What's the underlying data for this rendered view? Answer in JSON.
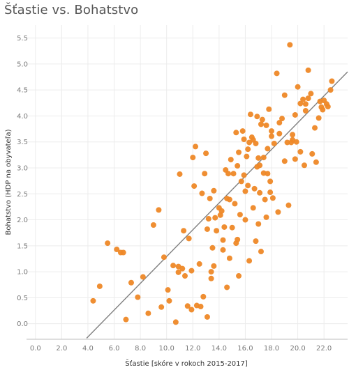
{
  "title": "Šťastie vs. Bohatstvo",
  "colors": {
    "point": "#EE8827",
    "trend": "#7f7f7f",
    "grid": "#ececec",
    "axis": "#bdbdbd"
  },
  "chart_data": {
    "type": "scatter",
    "title": "Šťastie vs. Bohatstvo",
    "xlabel": "Šťastie  [skóre v rokoch 2015-2017]",
    "ylabel": "Bohatstvo (HDP na obyvateľa)",
    "xlim": [
      -1,
      23.8
    ],
    "ylim": [
      -0.3,
      5.75
    ],
    "xticks": [
      "0.0",
      "2.0",
      "4.0",
      "6.0",
      "8.0",
      "10.0",
      "12.0",
      "14.0",
      "16.0",
      "18.0",
      "20.0",
      "22.0"
    ],
    "xtick_values": [
      0,
      2,
      4,
      6,
      8,
      10,
      12,
      14,
      16,
      18,
      20,
      22
    ],
    "yticks": [
      "0.0",
      "0.5",
      "1.0",
      "1.5",
      "2.0",
      "2.5",
      "3.0",
      "3.5",
      "4.0",
      "4.5",
      "5.0",
      "5.5"
    ],
    "ytick_values": [
      0,
      0.5,
      1,
      1.5,
      2,
      2.5,
      3,
      3.5,
      4,
      4.5,
      5,
      5.5
    ],
    "grid": true,
    "trendline": {
      "x": [
        3.9,
        23.8
      ],
      "y": [
        -0.28,
        4.85
      ]
    },
    "series": [
      {
        "x": [
          4.4,
          4.9,
          5.5,
          6.2,
          6.5,
          6.7,
          6.9,
          7.3,
          7.8,
          8.2,
          8.6,
          9.0,
          9.4,
          9.6,
          9.8,
          10.2,
          10.5,
          10.7,
          10.9,
          10.9,
          11.0,
          11.3,
          11.4,
          11.6,
          11.7,
          11.9,
          11.9,
          12.0,
          12.1,
          12.2,
          12.5,
          12.6,
          12.7,
          12.9,
          13.0,
          13.1,
          13.2,
          13.3,
          13.4,
          13.5,
          13.6,
          13.7,
          13.8,
          14.0,
          14.1,
          14.2,
          14.3,
          14.4,
          14.5,
          14.6,
          14.7,
          14.8,
          14.9,
          15.0,
          15.1,
          15.2,
          15.3,
          15.4,
          15.5,
          15.6,
          15.7,
          15.8,
          15.9,
          16.0,
          16.1,
          16.2,
          16.3,
          16.4,
          16.5,
          16.6,
          16.7,
          16.8,
          16.9,
          17.0,
          17.1,
          17.2,
          17.3,
          17.4,
          17.5,
          17.6,
          17.7,
          17.8,
          17.9,
          18.0,
          18.2,
          18.4,
          18.6,
          18.8,
          19.0,
          19.2,
          19.4,
          19.6,
          19.8,
          20.0,
          20.2,
          20.4,
          20.6,
          20.8,
          21.0,
          21.3,
          21.6,
          21.9,
          22.2,
          22.5,
          14.8,
          15.3,
          16.0,
          16.6,
          17.0,
          17.4,
          17.9,
          18.5,
          19.3,
          19.9,
          20.5,
          21.1,
          21.7,
          22.3,
          22.6,
          15.5,
          16.3,
          17.2,
          18.1,
          19.0,
          19.8,
          20.8,
          21.8,
          13.4,
          12.8,
          15.9,
          17.7,
          19.5,
          14.6,
          16.8,
          18.6,
          20.2,
          12.3,
          13.1,
          22.0,
          11.2,
          10.1,
          18.0,
          15.4,
          16.9,
          17.6,
          19.6,
          21.4,
          20.6,
          17.1,
          14.3,
          13.6,
          16.2
        ],
        "y": [
          0.44,
          0.72,
          1.55,
          1.43,
          1.37,
          1.37,
          0.08,
          0.79,
          0.51,
          0.9,
          0.2,
          1.9,
          2.19,
          0.32,
          1.28,
          0.44,
          1.12,
          0.03,
          1.1,
          0.99,
          2.88,
          1.79,
          0.92,
          0.34,
          1.64,
          1.02,
          0.27,
          3.2,
          2.65,
          3.41,
          1.15,
          0.33,
          2.51,
          2.89,
          3.28,
          1.82,
          2.02,
          2.41,
          0.87,
          1.46,
          1.11,
          2.04,
          1.79,
          2.23,
          2.09,
          2.17,
          1.61,
          1.86,
          2.96,
          2.41,
          2.89,
          2.39,
          3.16,
          1.85,
          2.89,
          2.31,
          3.68,
          3.04,
          3.3,
          2.1,
          2.74,
          3.71,
          2.86,
          2.55,
          3.22,
          2.66,
          3.49,
          4.03,
          3.59,
          3.54,
          2.6,
          3.47,
          3.99,
          3.19,
          3.05,
          3.84,
          3.93,
          3.2,
          2.39,
          2.05,
          3.37,
          4.13,
          2.74,
          3.61,
          3.47,
          4.82,
          3.66,
          3.95,
          4.4,
          3.49,
          5.37,
          3.64,
          4.02,
          4.56,
          4.24,
          4.32,
          4.23,
          4.34,
          4.43,
          3.77,
          3.96,
          4.12,
          4.23,
          4.5,
          1.26,
          1.55,
          2.0,
          2.23,
          1.92,
          2.9,
          2.53,
          2.15,
          2.28,
          3.5,
          3.05,
          3.27,
          4.28,
          4.18,
          4.67,
          0.92,
          1.21,
          1.39,
          2.42,
          3.13,
          3.17,
          4.88,
          4.17,
          1.0,
          0.52,
          3.55,
          2.89,
          3.49,
          0.7,
          1.59,
          3.87,
          3.31,
          0.35,
          0.13,
          4.3,
          1.06,
          0.65,
          3.71,
          1.62,
          3.02,
          3.82,
          3.54,
          3.11,
          4.1,
          2.52,
          1.42,
          2.56,
          3.36
        ]
      }
    ]
  }
}
